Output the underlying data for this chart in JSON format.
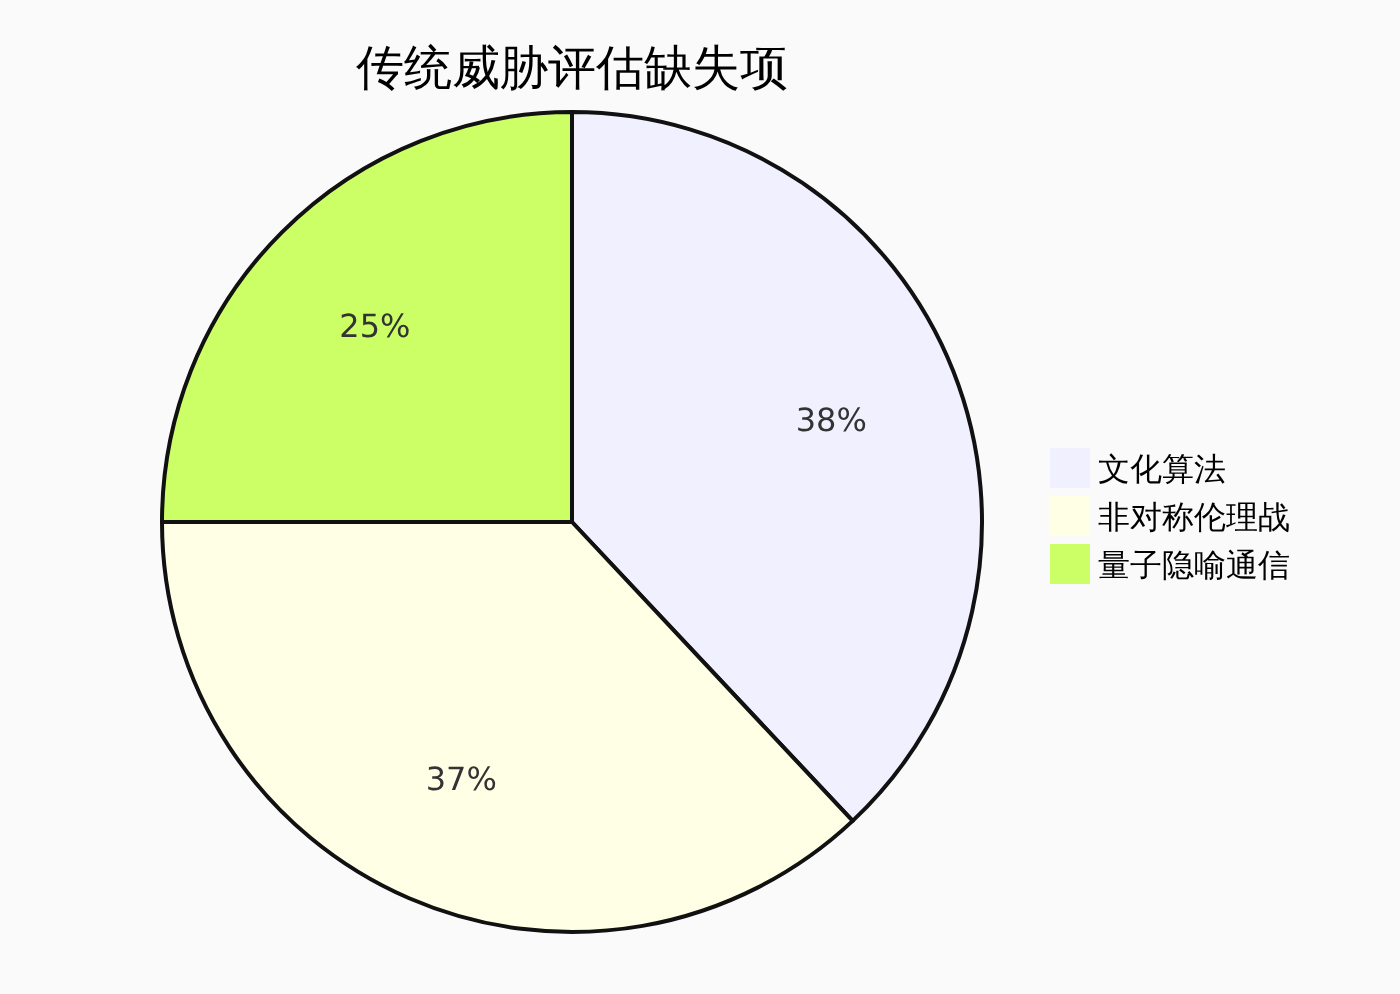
{
  "chart_data": {
    "type": "pie",
    "title": "传统威胁评估缺失项",
    "categories": [
      "文化算法",
      "非对称伦理战",
      "量子隐喻通信"
    ],
    "values": [
      38,
      37,
      25
    ],
    "colors": [
      "#f0f0ff",
      "#ffffe6",
      "#ccff66"
    ],
    "value_labels": [
      "38%",
      "37%",
      "25%"
    ],
    "legend": "right"
  }
}
